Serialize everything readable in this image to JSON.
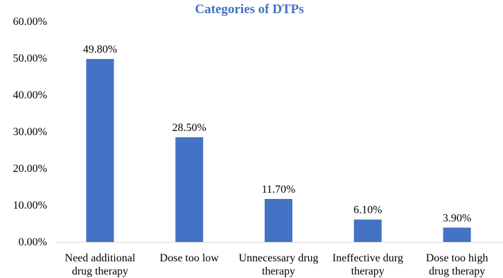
{
  "chart_data": {
    "type": "bar",
    "title": "Categories of DTPs",
    "xlabel": "",
    "ylabel": "",
    "ylim": [
      0,
      60
    ],
    "yticks": [
      0,
      10,
      20,
      30,
      40,
      50,
      60
    ],
    "ytick_labels": [
      "0.00%",
      "10.00%",
      "20.00%",
      "30.00%",
      "40.00%",
      "50.00%",
      "60.00%"
    ],
    "grid": false,
    "legend": "none",
    "categories": [
      [
        "Need additional",
        "drug therapy"
      ],
      [
        "Dose too low"
      ],
      [
        "Unnecessary drug",
        "therapy"
      ],
      [
        "Ineffective durg",
        "therapy"
      ],
      [
        "Dose too high",
        "drug therapy"
      ]
    ],
    "values": [
      49.8,
      28.5,
      11.7,
      6.1,
      3.9
    ],
    "data_labels": [
      "49.80%",
      "28.50%",
      "11.70%",
      "6.10%",
      "3.90%"
    ]
  },
  "colors": {
    "bar": "#4472c4",
    "title": "#4472c4",
    "axis": "#d9d9d9"
  }
}
